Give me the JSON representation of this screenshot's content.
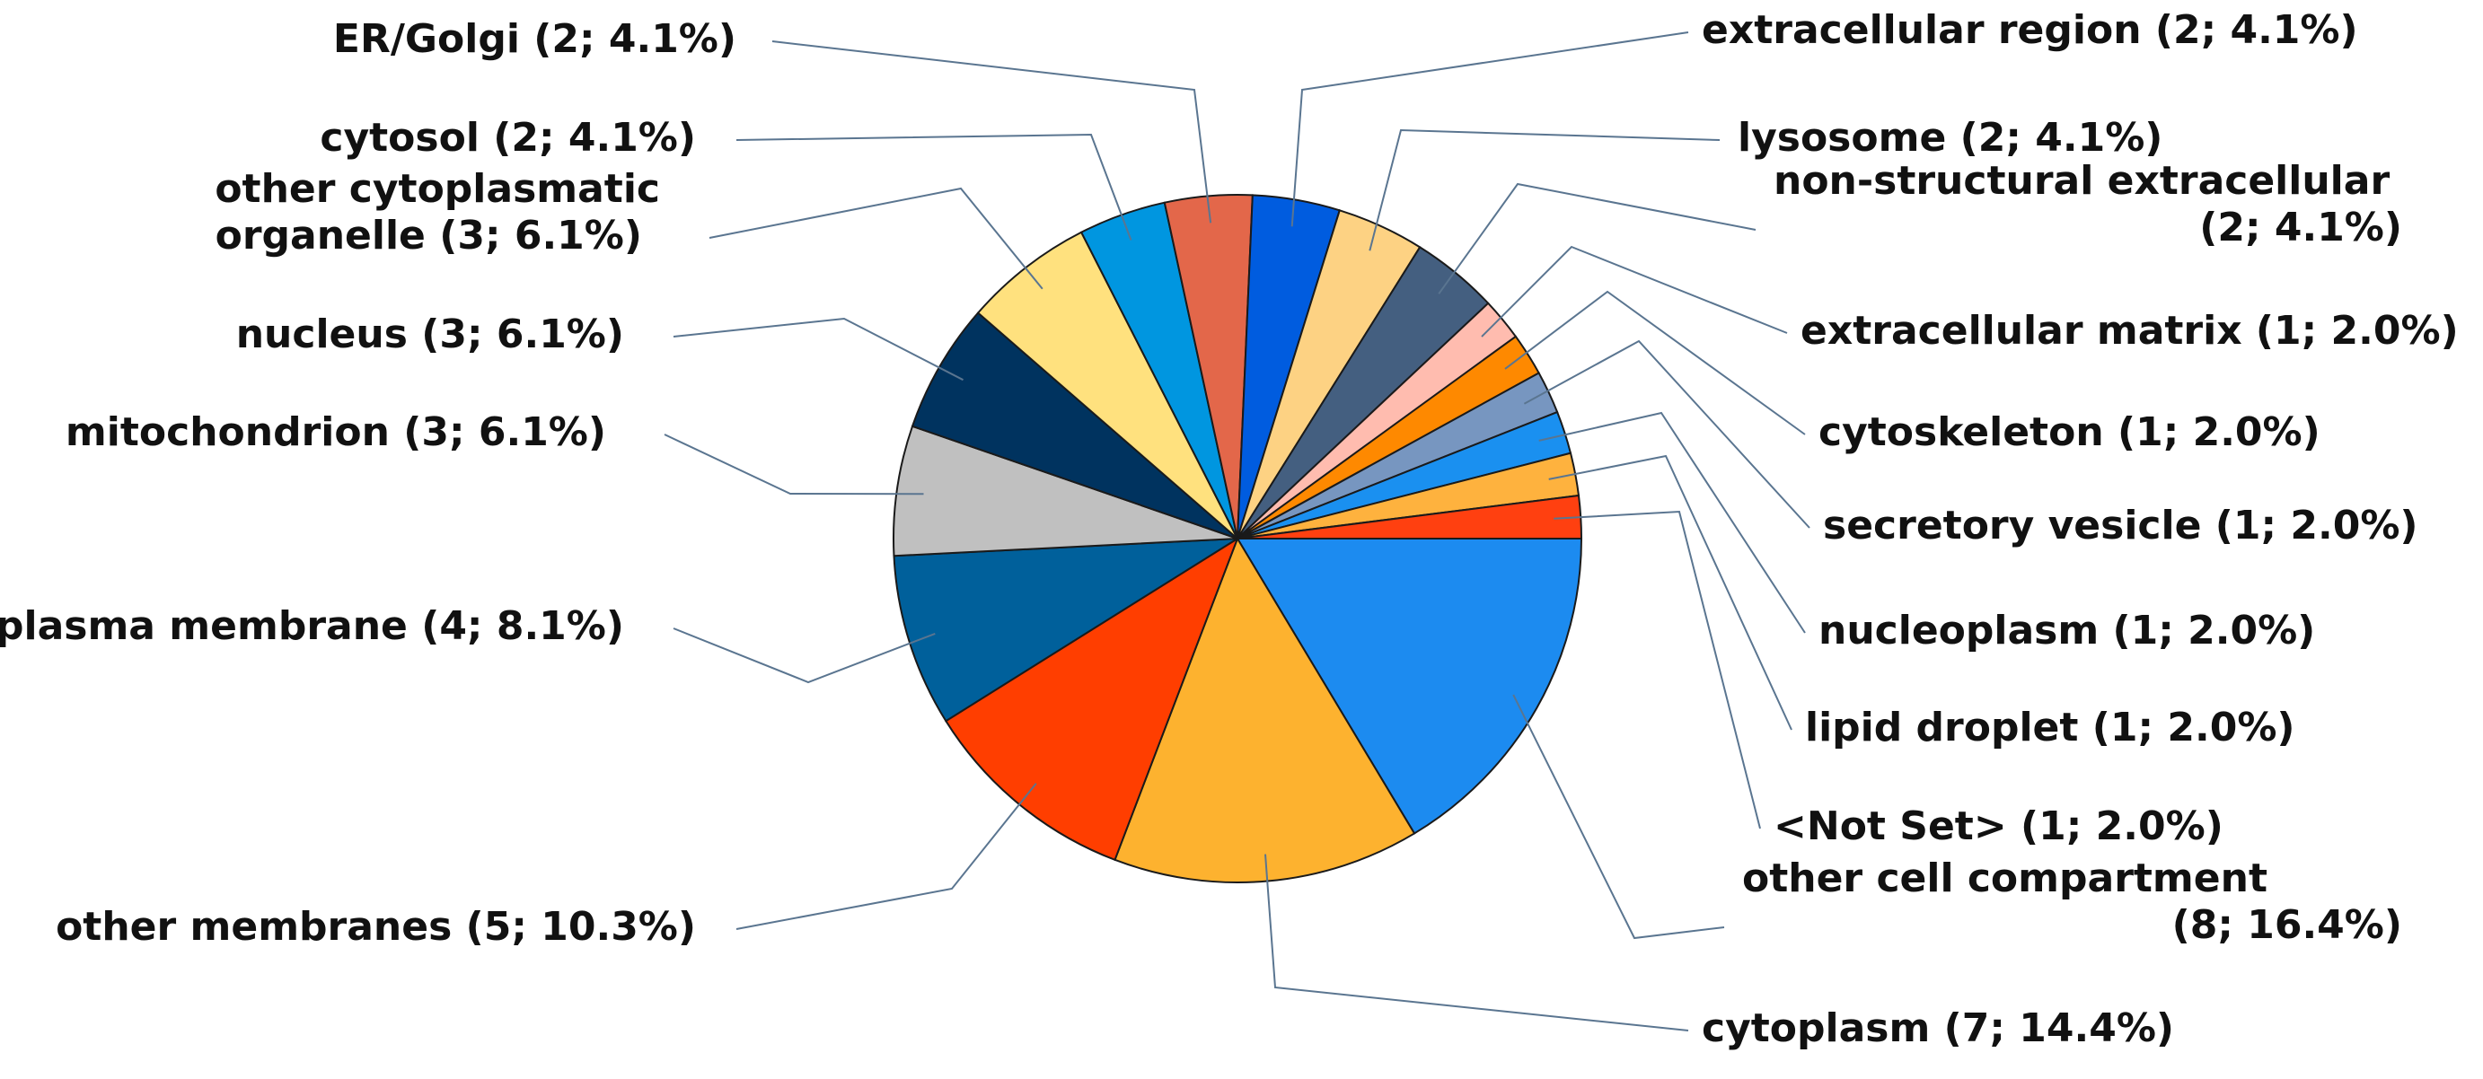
{
  "chart_data": {
    "type": "pie",
    "title": "",
    "slices": [
      {
        "label": "other cell compartment (8; 16.4%)",
        "lines": [
          "other cell compartment",
          "(8; 16.4%)"
        ],
        "value": 16.4,
        "color": "#1c8bf0"
      },
      {
        "label": "cytoplasm (7; 14.4%)",
        "lines": [
          "cytoplasm (7; 14.4%)"
        ],
        "value": 14.4,
        "color": "#fdb22f"
      },
      {
        "label": "other membranes (5; 10.3%)",
        "lines": [
          "other membranes (5; 10.3%)"
        ],
        "value": 10.3,
        "color": "#ff3e00"
      },
      {
        "label": "plasma membrane (4; 8.1%)",
        "lines": [
          "plasma membrane (4; 8.1%)"
        ],
        "value": 8.1,
        "color": "#00609b"
      },
      {
        "label": "mitochondrion (3; 6.1%)",
        "lines": [
          "mitochondrion (3; 6.1%)"
        ],
        "value": 6.1,
        "color": "#c0c0c0"
      },
      {
        "label": "nucleus (3; 6.1%)",
        "lines": [
          "nucleus (3; 6.1%)"
        ],
        "value": 6.1,
        "color": "#00335f"
      },
      {
        "label": "other cytoplasmatic organelle (3; 6.1%)",
        "lines": [
          "other cytoplasmatic",
          "organelle (3; 6.1%)"
        ],
        "value": 6.1,
        "color": "#ffe17e"
      },
      {
        "label": "cytosol (2; 4.1%)",
        "lines": [
          "cytosol (2; 4.1%)"
        ],
        "value": 4.1,
        "color": "#0096e0"
      },
      {
        "label": "ER/Golgi (2; 4.1%)",
        "lines": [
          "ER/Golgi (2; 4.1%)"
        ],
        "value": 4.1,
        "color": "#e3674a"
      },
      {
        "label": "extracellular region (2; 4.1%)",
        "lines": [
          "extracellular region (2; 4.1%)"
        ],
        "value": 4.1,
        "color": "#005cdf"
      },
      {
        "label": "lysosome (2; 4.1%)",
        "lines": [
          "lysosome (2; 4.1%)"
        ],
        "value": 4.1,
        "color": "#fdd283"
      },
      {
        "label": "non-structural extracellular (2; 4.1%)",
        "lines": [
          "non-structural extracellular",
          "(2; 4.1%)"
        ],
        "value": 4.1,
        "color": "#445f80"
      },
      {
        "label": "extracellular matrix (1; 2.0%)",
        "lines": [
          "extracellular matrix (1; 2.0%)"
        ],
        "value": 2.0,
        "color": "#ffbcaf"
      },
      {
        "label": "cytoskeleton (1; 2.0%)",
        "lines": [
          "cytoskeleton (1; 2.0%)"
        ],
        "value": 2.0,
        "color": "#fe8900"
      },
      {
        "label": "secretory vesicle (1; 2.0%)",
        "lines": [
          "secretory vesicle (1; 2.0%)"
        ],
        "value": 2.0,
        "color": "#7796c0"
      },
      {
        "label": "nucleoplasm (1; 2.0%)",
        "lines": [
          "nucleoplasm (1; 2.0%)"
        ],
        "value": 2.0,
        "color": "#1a90f0"
      },
      {
        "label": "lipid droplet (1; 2.0%)",
        "lines": [
          "lipid droplet (1; 2.0%)"
        ],
        "value": 2.0,
        "color": "#feb23e"
      },
      {
        "label": "<Not Set> (1; 2.0%)",
        "lines": [
          "<Not Set> (1; 2.0%)"
        ],
        "value": 2.0,
        "color": "#ff4010"
      }
    ],
    "start_angle": "3 o'clock",
    "direction": "clockwise",
    "legend": "none (leader-line labels)",
    "grid": false,
    "leader_line_color": "#5a7590"
  }
}
